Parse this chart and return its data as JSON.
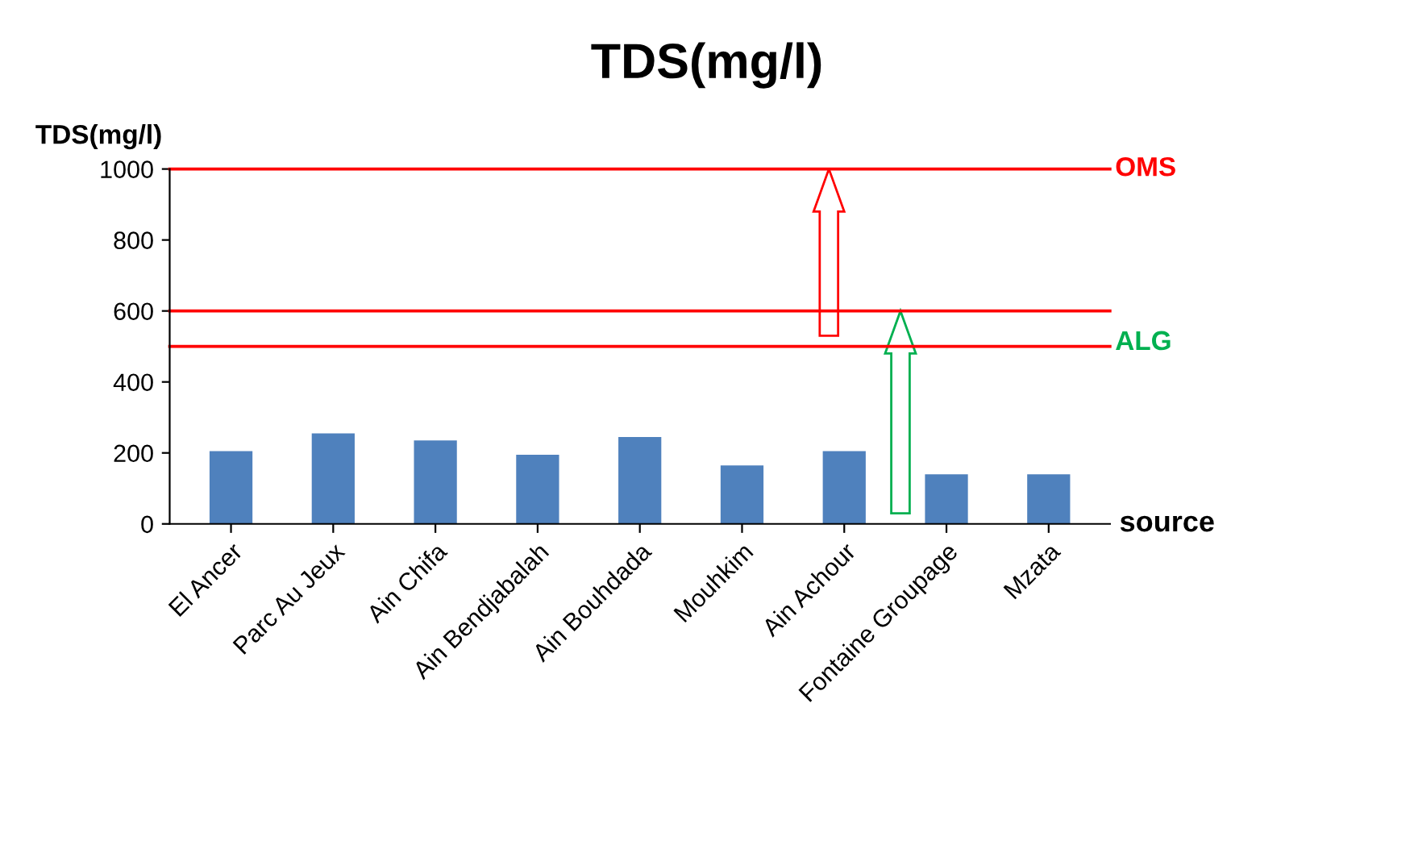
{
  "chart_data": {
    "type": "bar",
    "title": "TDS(mg/l)",
    "ylabel": "TDS(mg/l)",
    "xlabel": "source",
    "categories": [
      "El Ancer",
      "Parc Au Jeux",
      "Ain Chifa",
      "Ain Bendjabalah",
      "Ain Bouhdada",
      "Mouhkim",
      "Ain Achour",
      "Fontaine Groupage",
      "Mzata"
    ],
    "values": [
      205,
      255,
      235,
      195,
      245,
      165,
      205,
      140,
      140
    ],
    "color": "#4f81bd",
    "ylim": [
      0,
      1000
    ],
    "yticks": [
      0,
      200,
      400,
      600,
      800,
      1000
    ],
    "grid": false,
    "legend": false,
    "ref_lines": [
      {
        "axis": "y",
        "value": 1000,
        "label": "OMS",
        "color": "#ff0000"
      },
      {
        "axis": "y",
        "value": 600,
        "color": "#ff0000"
      },
      {
        "axis": "y",
        "value": 500,
        "label": "ALG",
        "color": "#ff0000"
      }
    ]
  }
}
